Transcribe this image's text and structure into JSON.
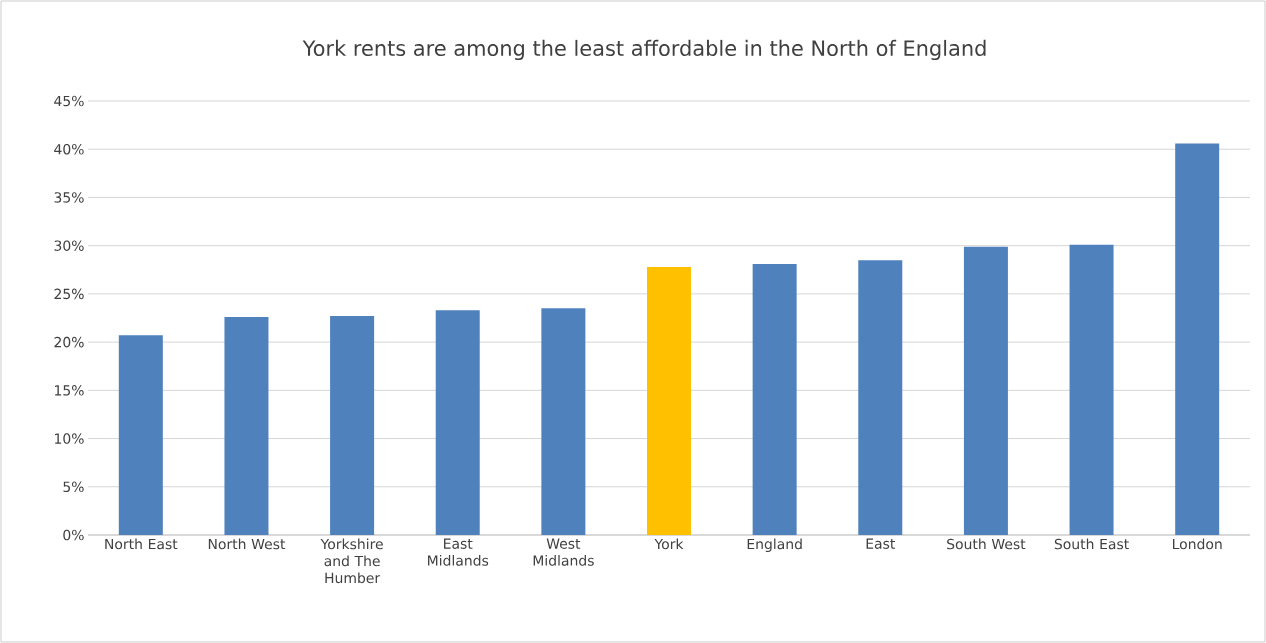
{
  "chart_data": {
    "type": "bar",
    "title": "York rents are among the least affordable in the North of England",
    "categories": [
      "North East",
      "North West",
      "Yorkshire and The Humber",
      "East Midlands",
      "West Midlands",
      "York",
      "England",
      "East",
      "South West",
      "South East",
      "London"
    ],
    "values": [
      20.7,
      22.6,
      22.7,
      23.3,
      23.5,
      27.8,
      28.1,
      28.5,
      29.9,
      30.1,
      40.6
    ],
    "colors": [
      "#4f81bd",
      "#4f81bd",
      "#4f81bd",
      "#4f81bd",
      "#4f81bd",
      "#ffc000",
      "#4f81bd",
      "#4f81bd",
      "#4f81bd",
      "#4f81bd",
      "#4f81bd"
    ],
    "ylim": [
      0,
      45
    ],
    "yticks": [
      {
        "value": 0,
        "label": "0%"
      },
      {
        "value": 5,
        "label": "5%"
      },
      {
        "value": 10,
        "label": "10%"
      },
      {
        "value": 15,
        "label": "15%"
      },
      {
        "value": 20,
        "label": "20%"
      },
      {
        "value": 25,
        "label": "25%"
      },
      {
        "value": 30,
        "label": "30%"
      },
      {
        "value": 35,
        "label": "35%"
      },
      {
        "value": 40,
        "label": "40%"
      },
      {
        "value": 45,
        "label": "45%"
      }
    ],
    "grid": "y"
  }
}
